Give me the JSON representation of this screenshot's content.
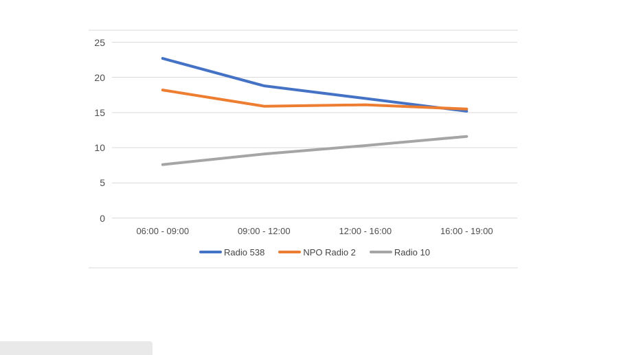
{
  "page": {
    "background_color": "#ffffff"
  },
  "chart_data": {
    "type": "line",
    "categories": [
      "06:00 - 09:00",
      "09:00 - 12:00",
      "12:00 - 16:00",
      "16:00 - 19:00"
    ],
    "series": [
      {
        "name": "Radio 538",
        "color": "#4472C4",
        "values": [
          22.7,
          18.8,
          17.0,
          15.2
        ]
      },
      {
        "name": "NPO Radio 2",
        "color": "#ED7D31",
        "values": [
          18.2,
          15.9,
          16.1,
          15.5
        ]
      },
      {
        "name": "Radio 10",
        "color": "#A5A5A5",
        "values": [
          7.6,
          9.1,
          10.3,
          11.6
        ]
      }
    ],
    "y_ticks": [
      0,
      5,
      10,
      15,
      20,
      25
    ],
    "ylim": [
      0,
      25
    ],
    "grid": true,
    "legend_position": "bottom",
    "gridline_color": "#D9D9D9",
    "frame_line_color": "#D9D9D9",
    "axis_text_color": "#4d4d4d"
  }
}
